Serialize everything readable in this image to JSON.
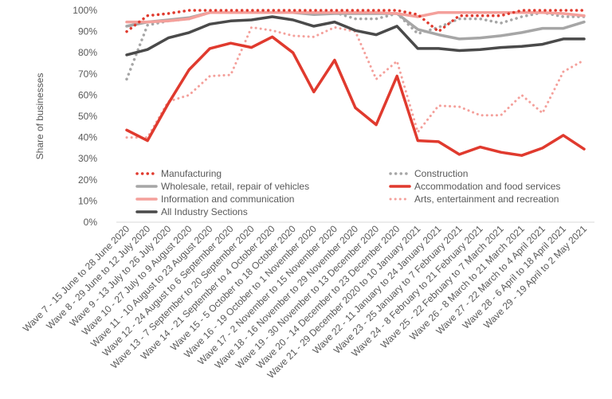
{
  "chart_data": {
    "type": "line",
    "title": "",
    "xlabel": "",
    "ylabel": "Share of businesses",
    "ylim": [
      0,
      100
    ],
    "yticks": [
      0,
      10,
      20,
      30,
      40,
      50,
      60,
      70,
      80,
      90,
      100
    ],
    "ytick_labels": [
      "0%",
      "10%",
      "20%",
      "30%",
      "40%",
      "50%",
      "60%",
      "70%",
      "80%",
      "90%",
      "100%"
    ],
    "grid": false,
    "legend_position": "lower-middle",
    "categories": [
      "Wave 7 - 15 June to 28 June 2020",
      "Wave 8 - 29 June to 12 July 2020",
      "Wave 9 - 13 July to 26 July 2020",
      "Wave 10 - 27 July to 9 August 2020",
      "Wave 11 - 10 August to 23 August 2020",
      "Wave 12 - 24 August to 6 September 2020",
      "Wave 13 - 7 September to 20 September 2020",
      "Wave 14 - 21 September to 4 October 2020",
      "Wave 15 - 5 October to 18 October 2020",
      "Wave 16 - 19 October to 1 November 2020",
      "Wave 17 - 2 November to 15 November 2020",
      "Wave 18 - 16 November to 29 November 2020",
      "Wave 19 - 30 November to 13 December 2020",
      "Wave 20 - 14 December to 23 December 2020",
      "Wave 21 - 29 December 2020 to 10 January 2021",
      "Wave 22 - 11 January to 24 January 2021",
      "Wave 23 - 25 January to 7 February 2021",
      "Wave 24 - 8 February to 21 February 2021",
      "Wave 25 - 22 February to 7 March 2021",
      "Wave 26 - 8 March to 21 March 2021",
      "Wave 27 - 22 March to 4 April 2021",
      "Wave 28 - 6 April to 18 April 2021",
      "Wave 29 - 19 April to 2 May 2021"
    ],
    "series": [
      {
        "name": "Manufacturing",
        "color": "#e03a2e",
        "style": "dotted-heavy",
        "values": [
          90,
          97.5,
          98.5,
          100,
          100,
          100,
          100,
          100,
          100,
          100,
          100,
          100,
          100,
          100,
          98,
          90,
          97.5,
          97.5,
          97.5,
          100,
          100,
          100,
          100
        ]
      },
      {
        "name": "Construction",
        "color": "#a6a6a6",
        "style": "dotted-heavy",
        "values": [
          67.5,
          93,
          95,
          96,
          99,
          99,
          99,
          99,
          99,
          99,
          99,
          96,
          96,
          98.5,
          89,
          92,
          96,
          96,
          94,
          97,
          99,
          97,
          97
        ]
      },
      {
        "name": "Wholesale, retail, repair of vehicles",
        "color": "#a6a6a6",
        "style": "solid",
        "values": [
          92.5,
          94.5,
          95.5,
          96.5,
          99,
          99,
          99,
          99,
          99,
          98,
          98.5,
          98.5,
          98.5,
          98.5,
          91,
          88.5,
          86.5,
          87,
          88,
          89.5,
          91.5,
          91.5,
          94.5
        ]
      },
      {
        "name": "Accommodation and food services",
        "color": "#e03a2e",
        "style": "solid",
        "values": [
          43.5,
          38.5,
          56,
          72,
          82,
          84.5,
          82.5,
          87.5,
          80,
          61.5,
          76.5,
          54,
          46,
          69,
          38.5,
          38,
          32,
          35.5,
          33,
          31.5,
          35,
          41,
          34.5
        ]
      },
      {
        "name": "Information and communication",
        "color": "#f4a09b",
        "style": "solid",
        "values": [
          94.5,
          94.5,
          95,
          96,
          99,
          99,
          99,
          99,
          99,
          99,
          99,
          99,
          99,
          98.5,
          97,
          99,
          99,
          99,
          99,
          99,
          99,
          98.5,
          97.5
        ]
      },
      {
        "name": "Arts, entertainment and recreation",
        "color": "#f4a09b",
        "style": "dotted",
        "values": [
          40,
          40,
          57,
          60,
          69,
          69.5,
          92,
          90.5,
          88,
          87.5,
          92,
          90,
          67.5,
          76,
          42.5,
          55,
          54.5,
          50.5,
          50.5,
          60,
          51.5,
          71,
          76.5
        ]
      },
      {
        "name": "All Industry Sections",
        "color": "#4a4a4a",
        "style": "solid",
        "values": [
          79,
          81.5,
          87,
          89.5,
          93.5,
          95,
          95.5,
          97,
          95.5,
          92.5,
          94.5,
          90.5,
          88.5,
          92.5,
          82,
          82,
          81,
          81.5,
          82.5,
          83,
          84,
          86.5,
          86.5
        ]
      }
    ],
    "legend_columns": [
      [
        "Manufacturing",
        "Wholesale, retail, repair of vehicles",
        "Information and communication",
        "All Industry Sections"
      ],
      [
        "Construction",
        "Accommodation and food services",
        "Arts, entertainment and recreation"
      ]
    ]
  }
}
